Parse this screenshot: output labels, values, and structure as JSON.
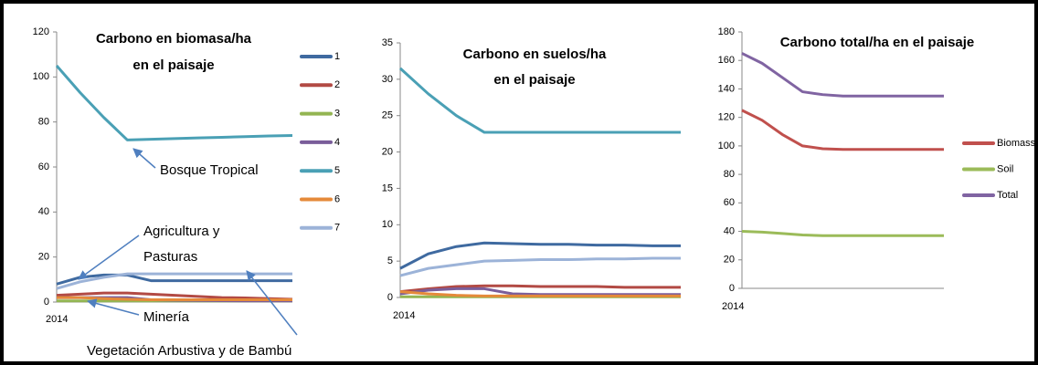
{
  "chart_data": [
    {
      "type": "line",
      "title": [
        "Carbono en biomasa/ha",
        "en el paisaje"
      ],
      "categories": [
        "2014",
        null,
        null,
        null,
        null,
        null,
        null,
        null,
        null,
        null,
        null
      ],
      "ylim": [
        0,
        120
      ],
      "yticks": [
        0,
        20,
        40,
        60,
        80,
        100,
        120
      ],
      "legend": true,
      "series": [
        {
          "name": "1",
          "color": "#3f6aa0",
          "values": [
            8,
            11,
            12,
            12,
            9.5,
            9.5,
            9.5,
            9.5,
            9.5,
            9.5,
            9.5
          ]
        },
        {
          "name": "2",
          "color": "#b24a44",
          "values": [
            3,
            3.5,
            4,
            4,
            3.5,
            3,
            2.5,
            2,
            1.8,
            1.5,
            1.2
          ]
        },
        {
          "name": "3",
          "color": "#93b552",
          "values": [
            0.5,
            0.5,
            0.5,
            0.5,
            0.5,
            0.5,
            0.5,
            0.5,
            0.5,
            0.5,
            0.5
          ]
        },
        {
          "name": "4",
          "color": "#7a5d9a",
          "values": [
            2,
            2,
            2,
            2,
            1,
            0.8,
            0.7,
            0.6,
            0.5,
            0.5,
            0.5
          ]
        },
        {
          "name": "5",
          "color": "#4aa0b5",
          "values": [
            105,
            93,
            82,
            72,
            72.3,
            72.6,
            72.9,
            73.2,
            73.5,
            73.8,
            74
          ]
        },
        {
          "name": "6",
          "color": "#e58a3a",
          "values": [
            2,
            2,
            1.5,
            1.2,
            1,
            1,
            1,
            1,
            1,
            1,
            1
          ]
        },
        {
          "name": "7",
          "color": "#9cb3d8",
          "values": [
            6,
            9,
            11,
            12.5,
            12.5,
            12.5,
            12.5,
            12.5,
            12.5,
            12.5,
            12.5
          ]
        }
      ],
      "annotations": [
        "Bosque Tropical",
        "Agricultura y",
        "Pasturas",
        "Minería",
        "Vegetación Arbustiva y de Bambú"
      ]
    },
    {
      "type": "line",
      "title": [
        "Carbono en suelos/ha",
        "en el paisaje"
      ],
      "categories": [
        "2014",
        null,
        null,
        null,
        null,
        null,
        null,
        null,
        null,
        null,
        null
      ],
      "ylim": [
        0,
        35
      ],
      "yticks": [
        0,
        5,
        10,
        15,
        20,
        25,
        30,
        35
      ],
      "legend": false,
      "series": [
        {
          "name": "1",
          "color": "#3f6aa0",
          "values": [
            4,
            6,
            7,
            7.5,
            7.4,
            7.3,
            7.3,
            7.2,
            7.2,
            7.1,
            7.1
          ]
        },
        {
          "name": "2",
          "color": "#b24a44",
          "values": [
            0.8,
            1.2,
            1.5,
            1.6,
            1.6,
            1.5,
            1.5,
            1.5,
            1.4,
            1.4,
            1.4
          ]
        },
        {
          "name": "3",
          "color": "#93b552",
          "values": [
            0.1,
            0.1,
            0.1,
            0.1,
            0.1,
            0.1,
            0.1,
            0.1,
            0.1,
            0.1,
            0.1
          ]
        },
        {
          "name": "4",
          "color": "#7a5d9a",
          "values": [
            0.5,
            1,
            1.2,
            1.2,
            0.5,
            0.4,
            0.4,
            0.4,
            0.4,
            0.4,
            0.4
          ]
        },
        {
          "name": "5",
          "color": "#4aa0b5",
          "values": [
            31.5,
            28,
            25,
            22.7,
            22.7,
            22.7,
            22.7,
            22.7,
            22.7,
            22.7,
            22.7
          ]
        },
        {
          "name": "6",
          "color": "#e58a3a",
          "values": [
            0.8,
            0.5,
            0.3,
            0.2,
            0.2,
            0.2,
            0.2,
            0.2,
            0.2,
            0.2,
            0.2
          ]
        },
        {
          "name": "7",
          "color": "#9cb3d8",
          "values": [
            3,
            4,
            4.5,
            5,
            5.1,
            5.2,
            5.2,
            5.3,
            5.3,
            5.4,
            5.4
          ]
        }
      ]
    },
    {
      "type": "line",
      "title": [
        "Carbono total/ha en el paisaje"
      ],
      "categories": [
        "2014",
        null,
        null,
        null,
        null,
        null,
        null,
        null,
        null,
        null,
        null
      ],
      "ylim": [
        0,
        180
      ],
      "yticks": [
        0,
        20,
        40,
        60,
        80,
        100,
        120,
        140,
        160,
        180
      ],
      "legend": true,
      "series": [
        {
          "name": "Biomass",
          "color": "#c0504d",
          "values": [
            125,
            118,
            108,
            100,
            98,
            97.5,
            97.5,
            97.5,
            97.5,
            97.5,
            97.5
          ]
        },
        {
          "name": "Soil",
          "color": "#9bbb59",
          "values": [
            40,
            39.5,
            38.5,
            37.5,
            37,
            37,
            37,
            37,
            37,
            37,
            37
          ]
        },
        {
          "name": "Total",
          "color": "#8064a2",
          "values": [
            165,
            158,
            148,
            138,
            136,
            135,
            135,
            135,
            135,
            135,
            135
          ]
        }
      ]
    }
  ]
}
